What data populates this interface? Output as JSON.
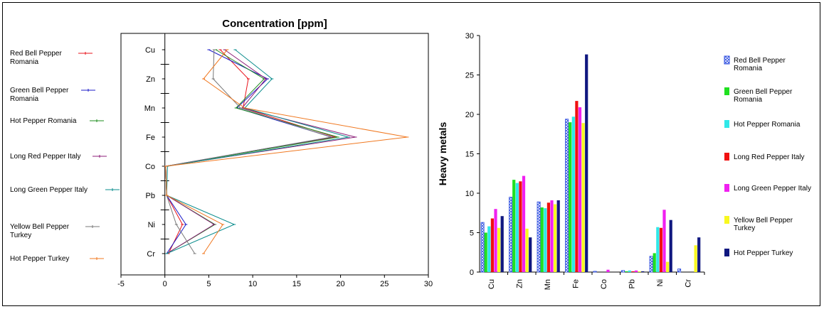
{
  "chart_data": [
    {
      "type": "line",
      "title": "Concentration [ppm]",
      "xlim": [
        -5,
        30
      ],
      "xticks": [
        "-5",
        "0",
        "5",
        "10",
        "15",
        "20",
        "25",
        "30"
      ],
      "categories": [
        "Cu",
        "Zn",
        "Mn",
        "Fe",
        "Co",
        "Pb",
        "Ni",
        "Cr"
      ],
      "series": [
        {
          "name": "Red Bell Pepper Romania",
          "color": "#e8141c",
          "values": [
            6.3,
            9.5,
            8.9,
            19.4,
            0.1,
            0.2,
            2.0,
            0.4
          ]
        },
        {
          "name": "Green Bell Pepper Romania",
          "color": "#1c1cc8",
          "values": [
            5.0,
            11.7,
            8.2,
            19.0,
            0.1,
            0.2,
            2.4,
            0.2
          ]
        },
        {
          "name": "Hot Pepper Romania",
          "color": "#1e8c1e",
          "values": [
            5.8,
            11.3,
            8.1,
            19.7,
            0.1,
            0.2,
            5.7,
            0.2
          ]
        },
        {
          "name": "Long Red Pepper Italy",
          "color": "#8c1e78",
          "values": [
            6.8,
            11.5,
            8.8,
            21.7,
            0.1,
            0.2,
            5.6,
            0.2
          ]
        },
        {
          "name": "Long Green Pepper Italy",
          "color": "#0a8c8c",
          "values": [
            8.0,
            12.2,
            9.1,
            20.9,
            0.3,
            0.2,
            7.9,
            0.2
          ]
        },
        {
          "name": "Yellow Bell Pepper Turkey",
          "color": "#787878",
          "values": [
            5.6,
            5.5,
            8.6,
            18.9,
            0.1,
            0.2,
            1.3,
            3.4
          ]
        },
        {
          "name": "Hot Pepper Turkey",
          "color": "#f07820",
          "values": [
            7.1,
            4.4,
            9.1,
            27.6,
            0.1,
            0.2,
            6.6,
            4.4
          ]
        }
      ],
      "legend": "left"
    },
    {
      "type": "bar",
      "ylabel": "Heavy metals",
      "ylim": [
        0,
        30
      ],
      "yticks": [
        "0",
        "5",
        "10",
        "15",
        "20",
        "25",
        "30"
      ],
      "categories": [
        "Cu",
        "Zn",
        "Mn",
        "Fe",
        "Co",
        "Pb",
        "Ni",
        "Cr"
      ],
      "series": [
        {
          "name": "Red Bell Pepper Romania",
          "color": "#3050e0",
          "pattern": "hatch",
          "values": [
            6.3,
            9.5,
            8.9,
            19.4,
            0.1,
            0.2,
            2.0,
            0.4
          ]
        },
        {
          "name": "Green Bell Pepper Romania",
          "color": "#20e020",
          "values": [
            5.0,
            11.7,
            8.2,
            19.0,
            0.0,
            0.1,
            2.4,
            0.0
          ]
        },
        {
          "name": "Hot Pepper Romania",
          "color": "#30e8e8",
          "values": [
            5.8,
            11.3,
            8.1,
            19.7,
            0.0,
            0.2,
            5.7,
            0.0
          ]
        },
        {
          "name": "Long Red Pepper Italy",
          "color": "#f01010",
          "values": [
            6.8,
            11.5,
            8.8,
            21.7,
            0.0,
            0.1,
            5.6,
            0.0
          ]
        },
        {
          "name": "Long Green Pepper Italy",
          "color": "#f020f0",
          "values": [
            8.0,
            12.2,
            9.1,
            20.9,
            0.3,
            0.2,
            7.9,
            0.0
          ]
        },
        {
          "name": "Yellow Bell Pepper Turkey",
          "color": "#f8f820",
          "values": [
            5.6,
            5.5,
            8.6,
            18.9,
            0.0,
            0.1,
            1.3,
            3.4
          ]
        },
        {
          "name": "Hot Pepper Turkey",
          "color": "#101880",
          "values": [
            7.1,
            4.4,
            9.1,
            27.6,
            0.0,
            0.1,
            6.6,
            4.4
          ]
        }
      ],
      "legend": "right"
    }
  ]
}
